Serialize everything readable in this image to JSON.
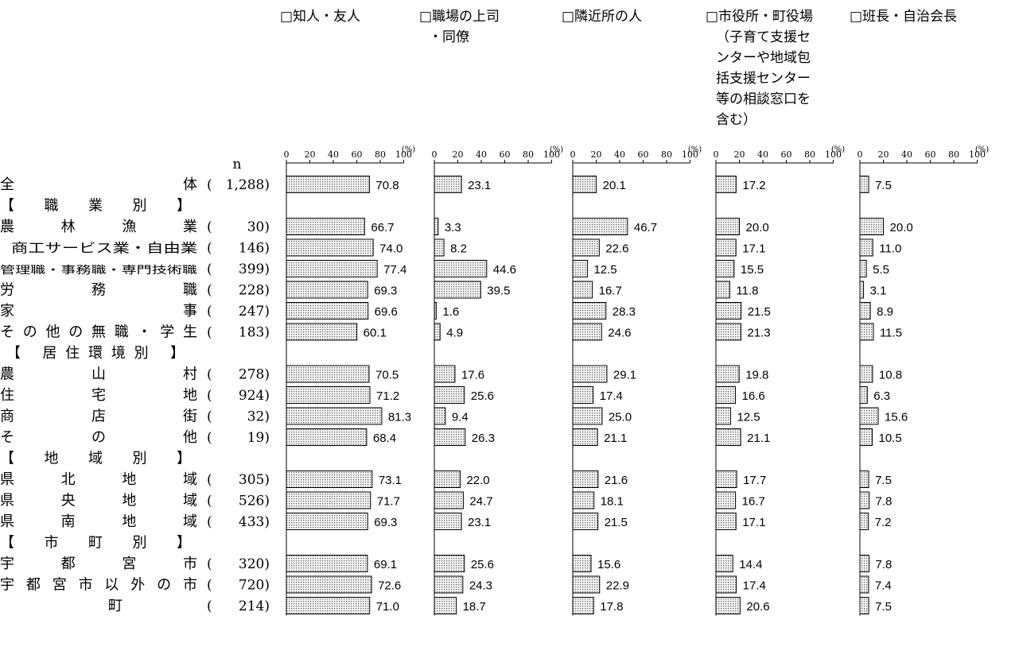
{
  "chart_data": {
    "type": "bar",
    "orientation": "horizontal",
    "n_header": "n",
    "unit": "(%)",
    "xlim": [
      0,
      100
    ],
    "x_ticks": [
      0,
      20,
      40,
      60,
      80,
      100
    ],
    "bar_fill": "dotted-grey",
    "categories": [
      {
        "label": "全体",
        "n": "(1,288)"
      },
      {
        "label": "【 職 業 別 】",
        "group": true
      },
      {
        "label": "農林漁業",
        "n": "( 30)"
      },
      {
        "label": "商工サービス業・自由業",
        "n": "( 146)"
      },
      {
        "label": "管理職・事務職・専門技術職",
        "n": "( 399)"
      },
      {
        "label": "労務職",
        "n": "( 228)"
      },
      {
        "label": "家事",
        "n": "( 247)"
      },
      {
        "label": "その他の無職・学生",
        "n": "( 183)"
      },
      {
        "label": "【 居住環境別 】",
        "group": true
      },
      {
        "label": "農山村",
        "n": "( 278)"
      },
      {
        "label": "住宅地",
        "n": "( 924)"
      },
      {
        "label": "商店街",
        "n": "( 32)"
      },
      {
        "label": "その他",
        "n": "( 19)"
      },
      {
        "label": "【 地 域 別 】",
        "group": true
      },
      {
        "label": "県北地域",
        "n": "( 305)"
      },
      {
        "label": "県央地域",
        "n": "( 526)"
      },
      {
        "label": "県南地域",
        "n": "( 433)"
      },
      {
        "label": "【 市 町 別 】",
        "group": true
      },
      {
        "label": "宇都宮市",
        "n": "( 320)"
      },
      {
        "label": "宇都宮市以外の市",
        "n": "( 720)"
      },
      {
        "label": "町",
        "n": "( 214)"
      }
    ],
    "series": [
      {
        "name": "□知人・友人",
        "values": [
          70.8,
          null,
          66.7,
          74.0,
          77.4,
          69.3,
          69.6,
          60.1,
          null,
          70.5,
          71.2,
          81.3,
          68.4,
          null,
          73.1,
          71.7,
          69.3,
          null,
          69.1,
          72.6,
          71.0
        ]
      },
      {
        "name": "□職場の上司 ・同僚",
        "values": [
          23.1,
          null,
          3.3,
          8.2,
          44.6,
          39.5,
          1.6,
          4.9,
          null,
          17.6,
          25.6,
          9.4,
          26.3,
          null,
          22.0,
          24.7,
          23.1,
          null,
          25.6,
          24.3,
          18.7
        ]
      },
      {
        "name": "□隣近所の人",
        "values": [
          20.1,
          null,
          46.7,
          22.6,
          12.5,
          16.7,
          28.3,
          24.6,
          null,
          29.1,
          17.4,
          25.0,
          21.1,
          null,
          21.6,
          18.1,
          21.5,
          null,
          15.6,
          22.9,
          17.8
        ]
      },
      {
        "name": "□市役所・町役場（子育て支援センターや地域包括支援センター等の相談窓口を含む）",
        "values": [
          17.2,
          null,
          20.0,
          17.1,
          15.5,
          11.8,
          21.5,
          21.3,
          null,
          19.8,
          16.6,
          12.5,
          21.1,
          null,
          17.7,
          16.7,
          17.1,
          null,
          14.4,
          17.4,
          20.6
        ]
      },
      {
        "name": "□班長・自治会長",
        "values": [
          7.5,
          null,
          20.0,
          11.0,
          5.5,
          3.1,
          8.9,
          11.5,
          null,
          10.8,
          6.3,
          15.6,
          10.5,
          null,
          7.5,
          7.8,
          7.2,
          null,
          7.8,
          7.4,
          7.5
        ]
      }
    ]
  }
}
